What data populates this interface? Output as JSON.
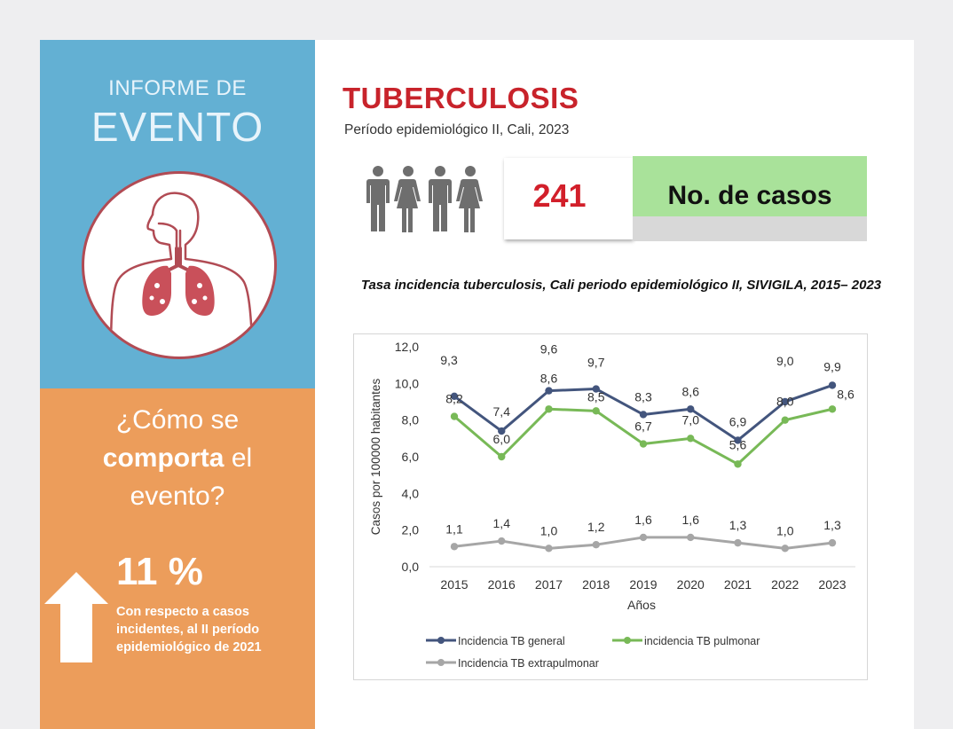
{
  "sidebar": {
    "report_line1": "INFORME DE",
    "report_line2": "EVENTO",
    "question_part1": "¿Cómo se",
    "question_bold": "comporta",
    "question_part2": "el",
    "question_part3": "evento?",
    "percent": "11 %",
    "percent_description": "Con respecto  a casos incidentes,  al II período epidemiológico de 2021"
  },
  "header": {
    "title": "TUBERCULOSIS",
    "subtitle": "Período epidemiológico  II, Cali, 2023"
  },
  "cases": {
    "value": "241",
    "label": "No. de casos"
  },
  "colors": {
    "title_red": "#c8232b",
    "blue_panel": "#63b0d3",
    "orange_panel": "#ec9d5b",
    "cases_green": "#a9e29a"
  },
  "chart_data": {
    "type": "line",
    "title": "Tasa  incidencia tuberculosis, Cali periodo epidemiológico II, SIVIGILA, 2015– 2023",
    "xlabel": "Años",
    "ylabel": "Casos por 100000 habitantes",
    "ylim": [
      0,
      12
    ],
    "y_ticks": [
      "0,0",
      "2,0",
      "4,0",
      "6,0",
      "8,0",
      "10,0",
      "12,0"
    ],
    "x": [
      "2015",
      "2016",
      "2017",
      "2018",
      "2019",
      "2020",
      "2021",
      "2022",
      "2023"
    ],
    "series": [
      {
        "name": "Incidencia TB general",
        "color": "#43557d",
        "values": [
          9.3,
          7.4,
          9.6,
          9.7,
          8.3,
          8.6,
          6.9,
          9.0,
          9.9
        ],
        "labels": [
          "9,3",
          "7,4",
          "9,6",
          "9,7",
          "8,3",
          "8,6",
          "6,9",
          "9,0",
          "9,9"
        ]
      },
      {
        "name": "incidencia TB pulmonar",
        "color": "#78b957",
        "values": [
          8.2,
          6.0,
          8.6,
          8.5,
          6.7,
          7.0,
          5.6,
          8.0,
          8.6
        ],
        "labels": [
          "8,2",
          "6,0",
          "8,6",
          "8,5",
          "6,7",
          "7,0",
          "5,6",
          "8,0",
          "8,6"
        ]
      },
      {
        "name": "Incidencia TB extrapulmonar",
        "color": "#a6a6a6",
        "values": [
          1.1,
          1.4,
          1.0,
          1.2,
          1.6,
          1.6,
          1.3,
          1.0,
          1.3
        ],
        "labels": [
          "1,1",
          "1,4",
          "1,0",
          "1,2",
          "1,6",
          "1,6",
          "1,3",
          "1,0",
          "1,3"
        ]
      }
    ],
    "legend": "bottom"
  }
}
